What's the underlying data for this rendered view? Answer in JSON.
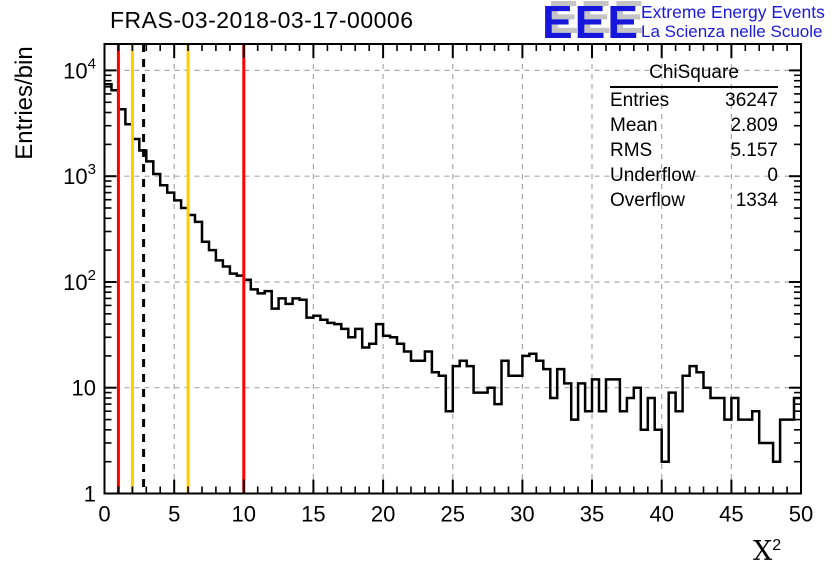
{
  "header": {
    "title": "FRAS-03-2018-03-17-00006"
  },
  "logo": {
    "acronym": "EEE",
    "tagline_line1": "Extreme Energy Events",
    "tagline_line2": "La Scienza nelle Scuole",
    "blue": "#1616dd",
    "shadow_gray": "#c4c4c4"
  },
  "stats_box": {
    "title": "ChiSquare",
    "rows": [
      {
        "label": "Entries",
        "value": "36247"
      },
      {
        "label": "Mean",
        "value": "2.809"
      },
      {
        "label": "RMS",
        "value": "5.157"
      },
      {
        "label": "Underflow",
        "value": "0"
      },
      {
        "label": "Overflow",
        "value": "1334"
      }
    ]
  },
  "axes": {
    "y_title": "Entries/bin",
    "x_title_base": "X",
    "x_title_exponent": "2"
  },
  "colors": {
    "cut_line_red": "#ff0000",
    "cut_line_yellow": "#ffcc00",
    "mean_line_black": "#000000",
    "grid_gray": "#a8a8a8",
    "histogram_black": "#000000"
  },
  "chart_data": {
    "type": "bar",
    "subtype": "step-histogram",
    "title": "FRAS-03-2018-03-17-00006",
    "xlabel": "X^2 (chi-square)",
    "ylabel": "Entries/bin",
    "y_scale": "log",
    "grid": true,
    "x_range": [
      0,
      50
    ],
    "y_range": [
      1,
      17800
    ],
    "y_axis_max_exponent": 4.25,
    "bin_width": 0.5,
    "bin_start": 0,
    "x_ticks": [
      0,
      5,
      10,
      15,
      20,
      25,
      30,
      35,
      40,
      45,
      50
    ],
    "y_tick_decades": [
      0,
      1,
      2,
      3,
      4
    ],
    "values": [
      7400,
      6500,
      4300,
      3100,
      2250,
      1750,
      1380,
      1050,
      820,
      700,
      590,
      500,
      430,
      370,
      240,
      200,
      160,
      140,
      120,
      115,
      105,
      85,
      78,
      82,
      56,
      70,
      62,
      70,
      68,
      46,
      48,
      44,
      41,
      40,
      36,
      30,
      36,
      24,
      26,
      40,
      31,
      30,
      26,
      22,
      18,
      18,
      22,
      14,
      13,
      6,
      16,
      18,
      16,
      9,
      9,
      10,
      7,
      18,
      13,
      13,
      20,
      21,
      18,
      15,
      8,
      15,
      11,
      5,
      11,
      6,
      12,
      6,
      12,
      12,
      6,
      8,
      10,
      4,
      8,
      4,
      2,
      9,
      6,
      13,
      16,
      14,
      10,
      8,
      8,
      5,
      8,
      5,
      5,
      6,
      3,
      3,
      2,
      5,
      5,
      8
    ],
    "vlines": [
      {
        "x": 1,
        "color": "#ff0000",
        "dash": false,
        "role": "cut-low-red"
      },
      {
        "x": 2,
        "color": "#ffcc00",
        "dash": false,
        "role": "cut-low-yellow"
      },
      {
        "x": 2.81,
        "color": "#000000",
        "dash": true,
        "role": "mean-marker"
      },
      {
        "x": 6,
        "color": "#ffcc00",
        "dash": false,
        "role": "cut-high-yellow"
      },
      {
        "x": 10,
        "color": "#ff0000",
        "dash": false,
        "role": "cut-high-red"
      }
    ],
    "stats": {
      "entries": 36247,
      "mean": 2.809,
      "rms": 5.157,
      "underflow": 0,
      "overflow": 1334
    }
  }
}
